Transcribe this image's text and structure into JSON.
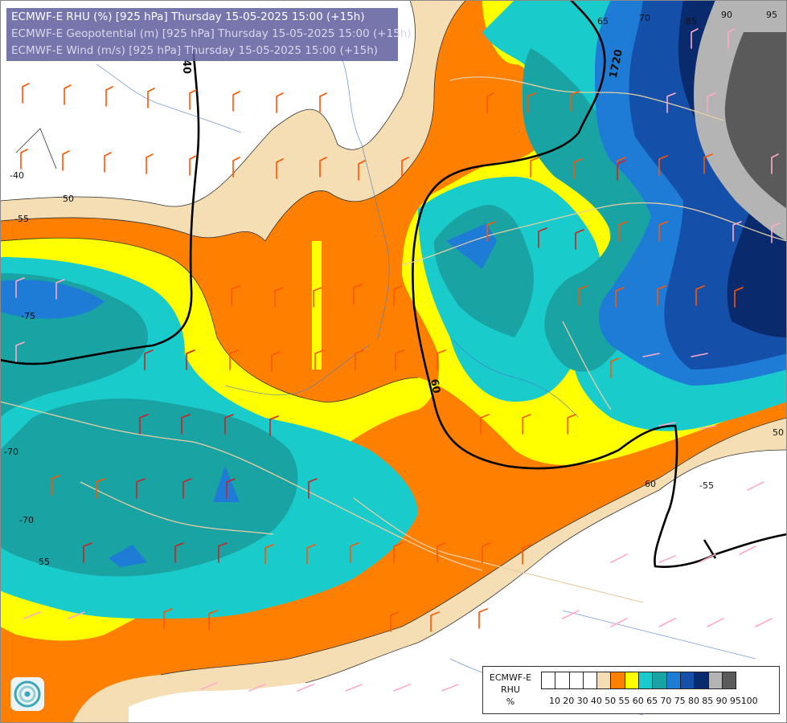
{
  "title_lines": [
    "ECMWF-E RHU (%) [925 hPa] Thursday 15-05-2025 15:00 (+15h)",
    "ECMWF-E Geopotential (m) [925 hPa] Thursday 15-05-2025 15:00 (+15h)",
    "ECMWF-E Wind (m/s) [925 hPa] Thursday 15-05-2025 15:00 (+15h)"
  ],
  "legend": {
    "label_lines": [
      "ECMWF-E",
      "RHU",
      "%"
    ],
    "ticks": [
      "10",
      "20",
      "30",
      "40",
      "50",
      "55",
      "60",
      "65",
      "70",
      "75",
      "80",
      "85",
      "90",
      "95",
      "100"
    ],
    "colors": [
      "#ffffff",
      "#ffffff",
      "#ffffff",
      "#ffffff",
      "#f5deb3",
      "#ff8000",
      "#ffff00",
      "#19cbcb",
      "#1aa3a3",
      "#1e7bd6",
      "#1450aa",
      "#0a2a6e",
      "#b4b4b4",
      "#5a5a5a"
    ]
  },
  "contour_labels": [
    "95",
    "90",
    "85",
    "70",
    "65",
    "1720",
    "40",
    "-40",
    "50",
    "-55",
    "-75",
    "-70",
    "-70",
    "55",
    "60",
    "60",
    "-55",
    "50"
  ],
  "logo_icon": "ecmwf-logo-icon",
  "wind_barb_colors": {
    "strong": "#ff5500",
    "medium": "#cc2222",
    "light": "#ffaacc"
  }
}
